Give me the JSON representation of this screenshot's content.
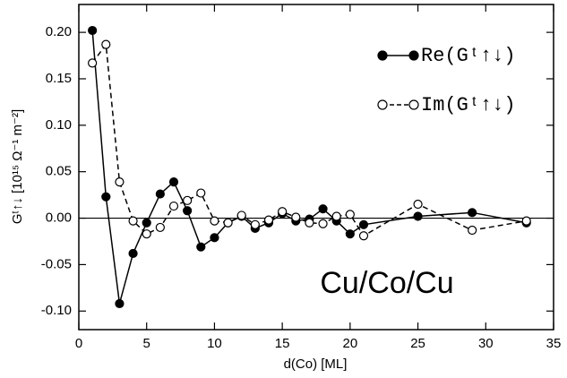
{
  "chart_data": {
    "type": "line",
    "x_label": "d(Co) [ML]",
    "y_label": "Gᵗ↑↓ [10¹⁵ Ω⁻¹ m⁻²]",
    "annotation": "Cu/Co/Cu",
    "x": [
      1,
      2,
      3,
      4,
      5,
      6,
      7,
      8,
      9,
      10,
      11,
      12,
      13,
      14,
      15,
      16,
      17,
      18,
      19,
      20,
      21,
      25,
      29,
      33
    ],
    "series": [
      {
        "name": "Re(Gᵗ↑↓)",
        "color": "#000000",
        "marker": "filled",
        "dash": false,
        "values": [
          0.202,
          0.023,
          -0.092,
          -0.038,
          -0.005,
          0.026,
          0.039,
          0.008,
          -0.031,
          -0.021,
          -0.005,
          0.002,
          -0.011,
          -0.005,
          0.005,
          -0.003,
          -0.001,
          0.01,
          -0.003,
          -0.017,
          -0.007,
          0.002,
          0.006,
          -0.005
        ]
      },
      {
        "name": "Im(Gᵗ↑↓)",
        "color": "#000000",
        "marker": "open",
        "dash": true,
        "values": [
          0.167,
          0.187,
          0.039,
          -0.003,
          -0.017,
          -0.01,
          0.013,
          0.019,
          0.027,
          -0.003,
          -0.005,
          0.003,
          -0.007,
          -0.002,
          0.007,
          0.001,
          -0.005,
          -0.006,
          0.002,
          0.004,
          -0.019,
          0.015,
          -0.013,
          -0.003
        ]
      }
    ],
    "xlim": [
      0,
      35
    ],
    "xticks": [
      0,
      5,
      10,
      15,
      20,
      25,
      30,
      35
    ],
    "ylim": [
      -0.12,
      0.23
    ],
    "yticks": [
      {
        "value": -0.1,
        "label": "-0.10"
      },
      -0.05,
      {
        "value": 0,
        "label": "0.00"
      },
      0.05,
      {
        "value": 0.1,
        "label": "0.10"
      },
      0.15,
      {
        "value": 0.2,
        "label": "0.20"
      }
    ],
    "zero_line": true,
    "legend": "upper right"
  }
}
